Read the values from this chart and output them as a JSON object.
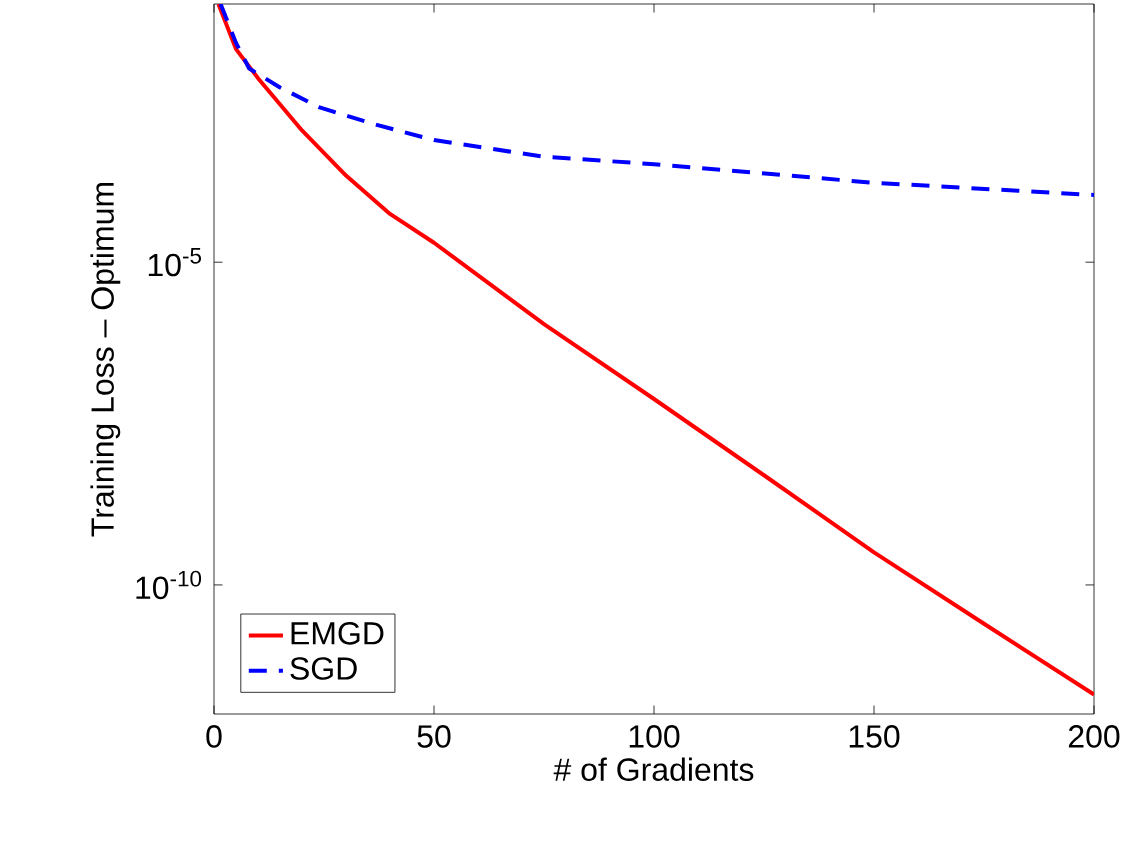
{
  "chart_data": {
    "type": "line",
    "xlabel": "# of Gradients",
    "ylabel": "Training Loss – Optimum",
    "log": "y",
    "xlim": [
      0,
      200
    ],
    "xticks": [
      0,
      50,
      100,
      150,
      200
    ],
    "ylim": [
      1e-12,
      0.1
    ],
    "yticks": [
      {
        "value": 1e-10,
        "label": "10$^{-10}$"
      },
      {
        "value": 1e-05,
        "label": "10$^{-5}$"
      }
    ],
    "legend": "bottom left",
    "grid": false,
    "series": [
      {
        "name": "EMGD",
        "color": "#ff0000",
        "line_style": "solid",
        "x": [
          1,
          5,
          10,
          20,
          30,
          40,
          50,
          75,
          100,
          125,
          150,
          175,
          200
        ],
        "values": [
          0.1,
          0.02,
          0.0071,
          0.0011,
          0.00022,
          5.6e-05,
          2e-05,
          1.1e-06,
          7.6e-08,
          5e-09,
          3.2e-10,
          2.5e-11,
          2e-12
        ]
      },
      {
        "name": "SGD",
        "color": "#0000ff",
        "line_style": "dashed",
        "x": [
          1.5,
          5,
          8,
          15,
          24,
          36,
          50,
          75,
          100,
          150,
          200
        ],
        "values": [
          0.1,
          0.025,
          0.01,
          0.0051,
          0.0025,
          0.0014,
          0.00078,
          0.00043,
          0.00033,
          0.00017,
          0.00011
        ]
      }
    ]
  }
}
